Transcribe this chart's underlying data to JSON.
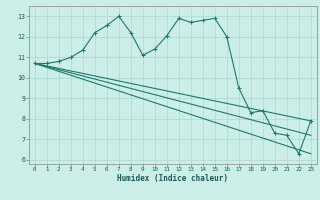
{
  "xlabel": "Humidex (Indice chaleur)",
  "bg_color": "#cceee8",
  "grid_color": "#aad8d0",
  "line_color": "#1a7a6e",
  "xlim": [
    -0.5,
    23.5
  ],
  "ylim": [
    5.8,
    13.5
  ],
  "yticks": [
    6,
    7,
    8,
    9,
    10,
    11,
    12,
    13
  ],
  "xticks": [
    0,
    1,
    2,
    3,
    4,
    5,
    6,
    7,
    8,
    9,
    10,
    11,
    12,
    13,
    14,
    15,
    16,
    17,
    18,
    19,
    20,
    21,
    22,
    23
  ],
  "line1_x": [
    0,
    1,
    2,
    3,
    4,
    5,
    6,
    7,
    8,
    9,
    10,
    11,
    12,
    13,
    14,
    15,
    16,
    17,
    18,
    19,
    20,
    21,
    22,
    23
  ],
  "line1_y": [
    10.7,
    10.7,
    10.8,
    11.0,
    11.35,
    12.2,
    12.55,
    13.0,
    12.2,
    11.1,
    11.4,
    12.05,
    12.9,
    12.7,
    12.8,
    12.9,
    12.0,
    9.5,
    8.3,
    8.4,
    7.3,
    7.2,
    6.3,
    7.9
  ],
  "line2_x": [
    0,
    23
  ],
  "line2_y": [
    10.7,
    7.9
  ],
  "line3_x": [
    0,
    23
  ],
  "line3_y": [
    10.7,
    7.2
  ],
  "line4_x": [
    0,
    23
  ],
  "line4_y": [
    10.7,
    6.3
  ]
}
